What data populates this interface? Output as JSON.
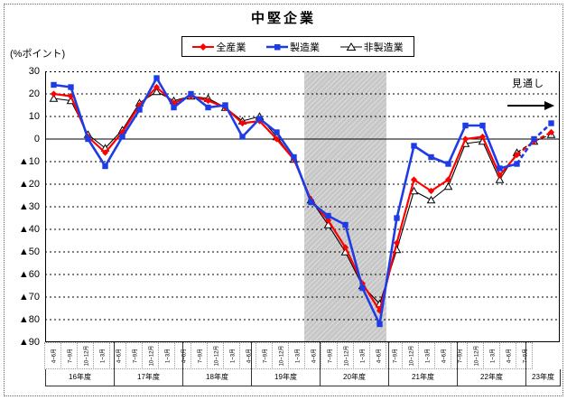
{
  "title": "中堅企業",
  "y_axis": {
    "unit_label": "(%ポイント)",
    "max": 30,
    "min": -90,
    "step": 10,
    "tick_labels": [
      "30",
      "20",
      "10",
      "0",
      "▲10",
      "▲20",
      "▲30",
      "▲40",
      "▲50",
      "▲60",
      "▲70",
      "▲80",
      "▲90"
    ]
  },
  "forecast": {
    "label": "見通し"
  },
  "x_axis": {
    "years": [
      {
        "label": "16年度",
        "quarters": [
          "4~6月",
          "7~9月",
          "10~12月",
          "1~3月"
        ]
      },
      {
        "label": "17年度",
        "quarters": [
          "4~6月",
          "7~9月",
          "10~12月",
          "1~3月"
        ]
      },
      {
        "label": "18年度",
        "quarters": [
          "4~6月",
          "7~9月",
          "10~12月",
          "1~3月"
        ]
      },
      {
        "label": "19年度",
        "quarters": [
          "4~6月",
          "7~9月",
          "10~12月",
          "1~3月"
        ]
      },
      {
        "label": "20年度",
        "quarters": [
          "4~6月",
          "7~9月",
          "10~12月",
          "1~3月"
        ]
      },
      {
        "label": "21年度",
        "quarters": [
          "4~6月",
          "7~9月",
          "10~12月",
          "1~3月"
        ]
      },
      {
        "label": "22年度",
        "quarters": [
          "4~6月",
          "7~9月",
          "10~12月",
          "1~3月"
        ]
      },
      {
        "label": "23年度",
        "quarters": [
          "4~6月",
          "7~9月"
        ]
      }
    ]
  },
  "chart_data": {
    "type": "line",
    "title": "中堅企業",
    "ylabel": "(%ポイント)",
    "ylim": [
      -90,
      30
    ],
    "grid": true,
    "legend_position": "top",
    "categories": [
      "16年度 4~6月",
      "16年度 7~9月",
      "16年度 10~12月",
      "16年度 1~3月",
      "17年度 4~6月",
      "17年度 7~9月",
      "17年度 10~12月",
      "17年度 1~3月",
      "18年度 4~6月",
      "18年度 7~9月",
      "18年度 10~12月",
      "18年度 1~3月",
      "19年度 4~6月",
      "19年度 7~9月",
      "19年度 10~12月",
      "19年度 1~3月",
      "20年度 4~6月",
      "20年度 7~9月",
      "20年度 10~12月",
      "20年度 1~3月",
      "21年度 4~6月",
      "21年度 7~9月",
      "21年度 10~12月",
      "21年度 1~3月",
      "22年度 4~6月",
      "22年度 7~9月",
      "22年度 10~12月",
      "22年度 1~3月",
      "23年度 4~6月",
      "23年度 7~9月"
    ],
    "series": [
      {
        "name": "全産業",
        "color": "#ff0000",
        "marker": "diamond",
        "line_width": 2.2,
        "values": [
          20,
          19,
          1,
          -6,
          3,
          15,
          23,
          16,
          19,
          17,
          14,
          7,
          8,
          0,
          -9,
          -27,
          -36,
          -48,
          -64,
          -76,
          -46,
          -18,
          -23,
          -18,
          0,
          1,
          -16,
          -7,
          -1,
          3
        ]
      },
      {
        "name": "製造業",
        "color": "#1e3ce6",
        "marker": "square",
        "line_width": 2.6,
        "values": [
          24,
          23,
          0,
          -12,
          1,
          13,
          27,
          14,
          20,
          14,
          15,
          1,
          9,
          3,
          -8,
          -28,
          -34,
          -38,
          -66,
          -82,
          -35,
          -3,
          -8,
          -11,
          6,
          6,
          -13,
          -11,
          0,
          7
        ]
      },
      {
        "name": "非製造業",
        "color": "#000000",
        "marker": "triangle-open",
        "line_width": 1.1,
        "values": [
          18,
          17,
          2,
          -4,
          4,
          16,
          21,
          17,
          19,
          18,
          14,
          8,
          10,
          1,
          -9,
          -27,
          -38,
          -50,
          -65,
          -73,
          -49,
          -23,
          -27,
          -21,
          -2,
          -1,
          -18,
          -6,
          -1,
          2
        ]
      }
    ],
    "forecast_from_index": 27,
    "shaded_region": {
      "from_index": 15,
      "to_index": 19
    }
  }
}
